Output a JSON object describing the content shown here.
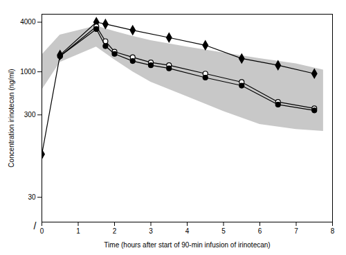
{
  "chart_data": {
    "type": "line",
    "xlabel": "Time (hours after start of 90-min infusion of irinotecan)",
    "ylabel": "Concentration irinotecan (ng/ml)",
    "log": "y",
    "grid": false,
    "xlim": [
      0,
      8
    ],
    "xticks": [
      0,
      1,
      2,
      3,
      4,
      5,
      6,
      7,
      8
    ],
    "ylim": [
      15,
      5000
    ],
    "yticks": [
      30,
      300,
      1000,
      4000
    ],
    "annotations": [
      "/"
    ],
    "series": [
      {
        "type": "band",
        "color": "#c8c8c8",
        "x": [
          0.0,
          0.5,
          1.5,
          2.0,
          2.5,
          3.0,
          4.0,
          5.0,
          6.0,
          7.0,
          7.75
        ],
        "lower": [
          600,
          1300,
          2000,
          1400,
          1000,
          750,
          500,
          330,
          230,
          200,
          190
        ],
        "upper": [
          1600,
          2800,
          3600,
          3100,
          2700,
          2400,
          2000,
          1700,
          1450,
          1250,
          1050
        ]
      },
      {
        "type": "line",
        "color": "black",
        "marker": "diamond",
        "x": [
          0.0,
          0.5,
          1.5,
          1.75,
          2.5,
          3.5,
          4.5,
          5.5,
          6.5,
          7.5
        ],
        "values": [
          100,
          1600,
          4000,
          3800,
          3200,
          2600,
          2100,
          1450,
          1200,
          950
        ]
      },
      {
        "type": "line",
        "color": "black",
        "marker": "circle-open",
        "x": [
          0.5,
          1.5,
          1.75,
          2.0,
          2.5,
          3.0,
          3.5,
          4.5,
          5.5,
          6.5,
          7.5
        ],
        "values": [
          1550,
          3550,
          2350,
          1750,
          1500,
          1300,
          1200,
          950,
          750,
          430,
          360
        ]
      },
      {
        "type": "line",
        "color": "black",
        "marker": "circle",
        "x": [
          0.5,
          1.5,
          1.75,
          2.0,
          2.5,
          3.0,
          3.5,
          4.5,
          5.5,
          6.5,
          7.5
        ],
        "values": [
          1550,
          3300,
          2050,
          1650,
          1350,
          1200,
          1100,
          850,
          680,
          400,
          340
        ]
      }
    ]
  }
}
